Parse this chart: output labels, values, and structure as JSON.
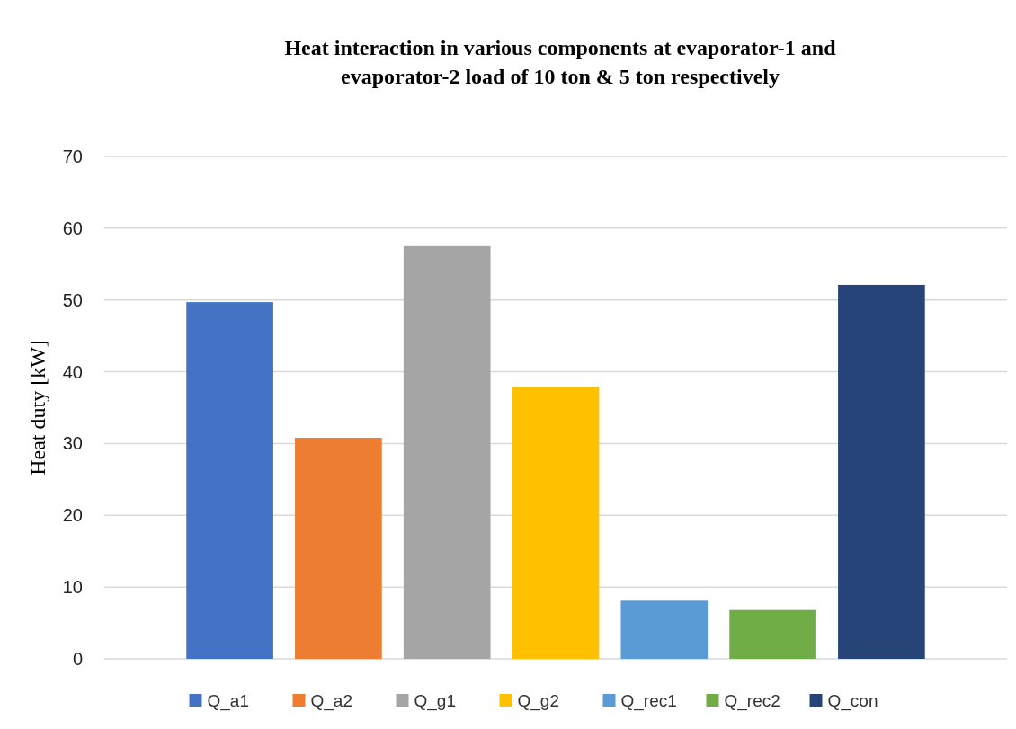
{
  "chart_data": {
    "type": "bar",
    "title": "Heat interaction in various components at evaporator-1 and evaporator-2 load of 10 ton & 5 ton respectively",
    "ylabel": "Heat duty [kW]",
    "categories": [
      null
    ],
    "series": [
      {
        "name": "Q_a1",
        "color": "#4472c4",
        "values": [
          49.7
        ]
      },
      {
        "name": "Q_a2",
        "color": "#ed7d31",
        "values": [
          30.8
        ]
      },
      {
        "name": "Q_g1",
        "color": "#a5a5a5",
        "values": [
          57.5
        ]
      },
      {
        "name": "Q_g2",
        "color": "#ffc000",
        "values": [
          37.9
        ]
      },
      {
        "name": "Q_rec1",
        "color": "#5b9bd5",
        "values": [
          8.1
        ]
      },
      {
        "name": "Q_rec2",
        "color": "#70ad47",
        "values": [
          6.8
        ]
      },
      {
        "name": "Q_con",
        "color": "#264478",
        "values": [
          52.1
        ]
      }
    ],
    "ylim": [
      0,
      70
    ],
    "yticks": [
      0,
      10,
      20,
      30,
      40,
      50,
      60,
      70
    ],
    "grid": "y",
    "legend": "bottom"
  }
}
